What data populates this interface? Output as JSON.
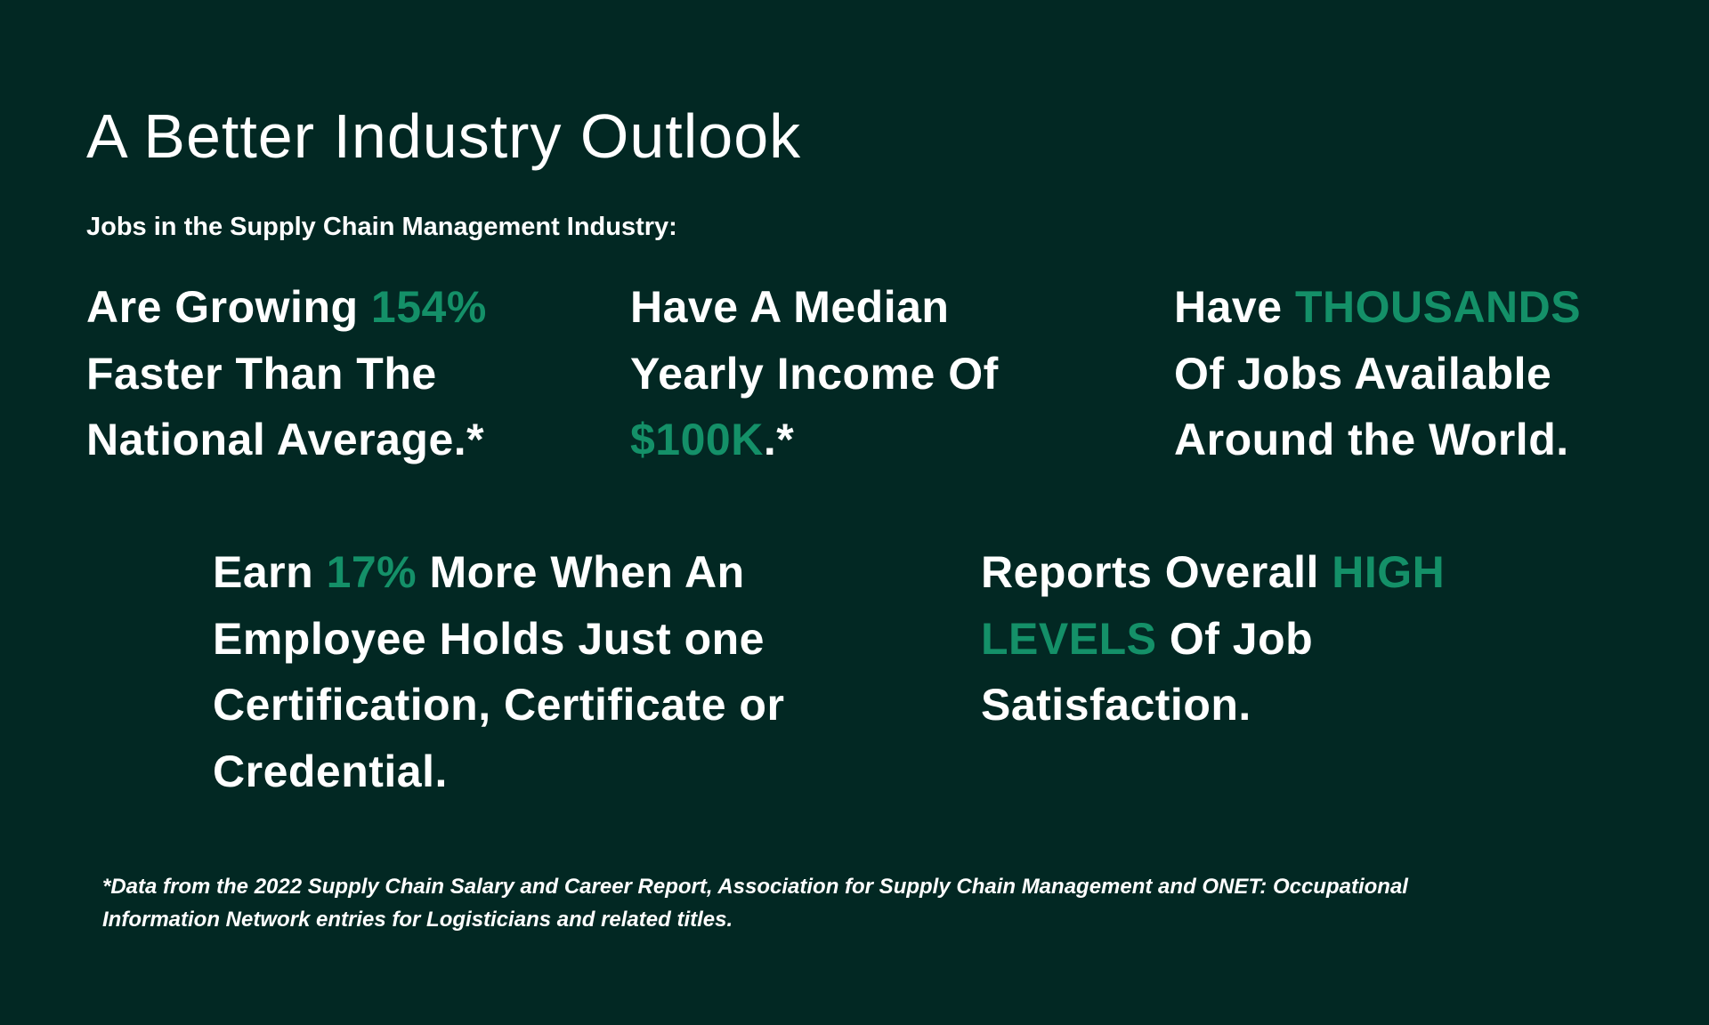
{
  "title": "A Better Industry Outlook",
  "subtitle": "Jobs in the Supply Chain Management Industry:",
  "colors": {
    "background": "#022823",
    "accent": "#149068",
    "text": "#ffffff"
  },
  "blocks": [
    {
      "id": "growth",
      "lines": [
        [
          {
            "t": "Are Growing ",
            "a": false
          },
          {
            "t": "154%",
            "a": true
          }
        ],
        [
          {
            "t": "Faster Than The",
            "a": false
          }
        ],
        [
          {
            "t": "National Average.*",
            "a": false
          }
        ]
      ]
    },
    {
      "id": "income",
      "lines": [
        [
          {
            "t": "Have A Median",
            "a": false
          }
        ],
        [
          {
            "t": "Yearly Income Of",
            "a": false
          }
        ],
        [
          {
            "t": "$100K",
            "a": true
          },
          {
            "t": ".*",
            "a": false
          }
        ]
      ]
    },
    {
      "id": "jobs",
      "lines": [
        [
          {
            "t": "Have ",
            "a": false
          },
          {
            "t": "THOUSANDS",
            "a": true
          }
        ],
        [
          {
            "t": "Of Jobs Available",
            "a": false
          }
        ],
        [
          {
            "t": "Around the World.",
            "a": false
          }
        ]
      ]
    },
    {
      "id": "certification",
      "lines": [
        [
          {
            "t": "Earn ",
            "a": false
          },
          {
            "t": "17%",
            "a": true
          },
          {
            "t": " More When An",
            "a": false
          }
        ],
        [
          {
            "t": "Employee Holds Just one",
            "a": false
          }
        ],
        [
          {
            "t": "Certification, Certificate or",
            "a": false
          }
        ],
        [
          {
            "t": "Credential.",
            "a": false
          }
        ]
      ]
    },
    {
      "id": "satisfaction",
      "lines": [
        [
          {
            "t": "Reports Overall ",
            "a": false
          },
          {
            "t": "HIGH",
            "a": true
          }
        ],
        [
          {
            "t": "LEVELS",
            "a": true
          },
          {
            "t": " Of Job",
            "a": false
          }
        ],
        [
          {
            "t": "Satisfaction.",
            "a": false
          }
        ]
      ]
    }
  ],
  "footnote": [
    "*Data from the 2022 Supply Chain Salary and Career Report, Association for Supply Chain Management and ONET: Occupational",
    "Information Network entries for Logisticians and related titles."
  ]
}
